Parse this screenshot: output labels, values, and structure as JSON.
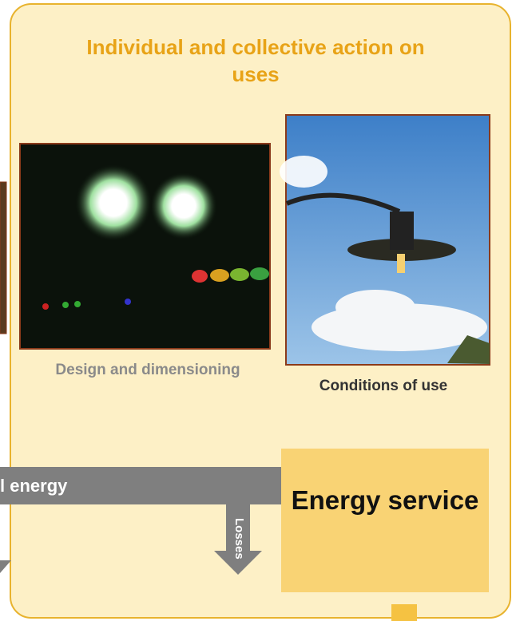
{
  "title": "Individual and collective action on uses",
  "photos": [
    {
      "caption": "Design and dimensioning"
    },
    {
      "caption": "Conditions of use"
    }
  ],
  "flow": {
    "input": "l energy",
    "losses": "Losses",
    "output": "Energy service"
  }
}
